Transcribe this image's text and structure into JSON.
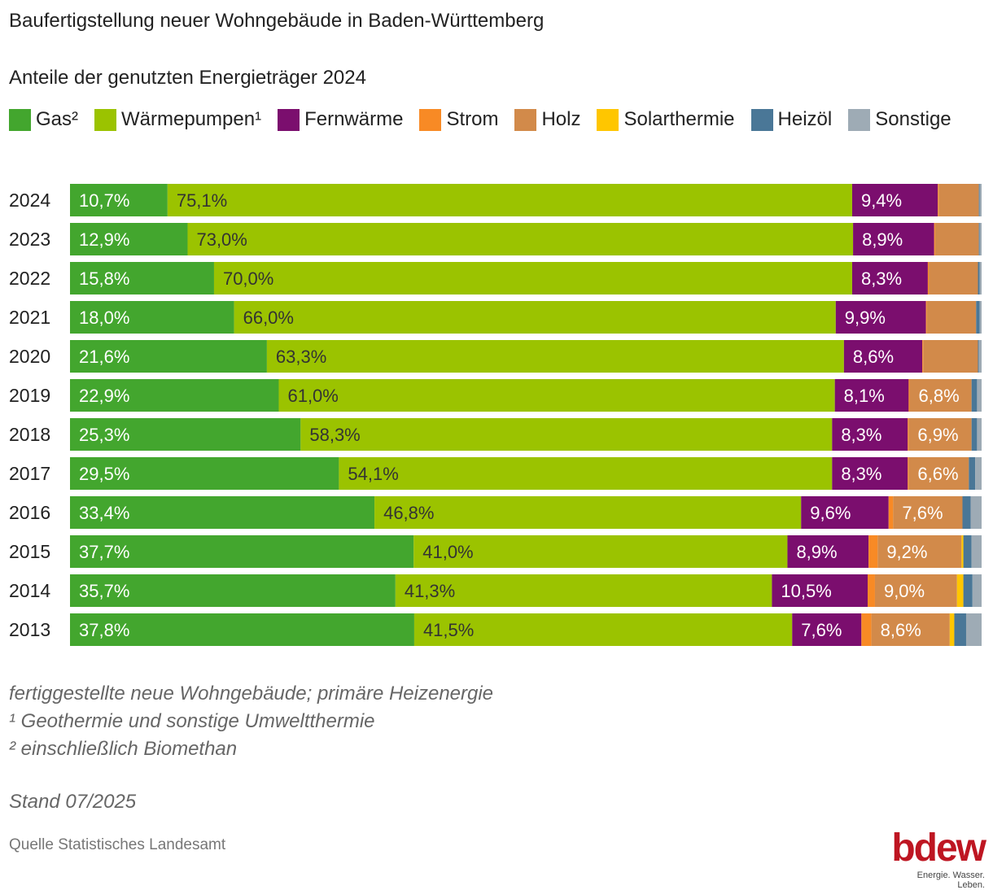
{
  "header": {
    "title": "Baufertigstellung neuer Wohngebäude in Baden-Württemberg",
    "subtitle": "Anteile der genutzten Energieträger 2024"
  },
  "footer": {
    "note_1": "fertiggestellte neue Wohngebäude; primäre Heizenergie",
    "note_2": "¹ Geothermie und sonstige Umweltthermie",
    "note_3": "² einschließlich Biomethan",
    "stand": "Stand 07/2025",
    "source": "Quelle Statistisches Landesamt"
  },
  "logo": {
    "word": "bdew",
    "tagline": "Energie. Wasser. Leben."
  },
  "chart_data": {
    "type": "bar",
    "orientation": "horizontal",
    "stacked": true,
    "normalized_percent": true,
    "categories": [
      "2024",
      "2023",
      "2022",
      "2021",
      "2020",
      "2019",
      "2018",
      "2017",
      "2016",
      "2015",
      "2014",
      "2013"
    ],
    "series": [
      {
        "name": "Gas²",
        "color": "#43a62e",
        "label_color": "#ffffff",
        "values": [
          10.7,
          12.9,
          15.8,
          18.0,
          21.6,
          22.9,
          25.3,
          29.5,
          33.4,
          37.7,
          35.7,
          37.8
        ],
        "labels": [
          "10,7%",
          "12,9%",
          "15,8%",
          "18,0%",
          "21,6%",
          "22,9%",
          "25,3%",
          "29,5%",
          "33,4%",
          "37,7%",
          "35,7%",
          "37,8%"
        ]
      },
      {
        "name": "Wärmepumpen¹",
        "color": "#9bc300",
        "label_color": "#333333",
        "values": [
          75.1,
          73.0,
          70.0,
          66.0,
          63.3,
          61.0,
          58.3,
          54.1,
          46.8,
          41.0,
          41.3,
          41.5
        ],
        "labels": [
          "75,1%",
          "73,0%",
          "70,0%",
          "66,0%",
          "63,3%",
          "61,0%",
          "58,3%",
          "54,1%",
          "46,8%",
          "41,0%",
          "41,3%",
          "41,5%"
        ]
      },
      {
        "name": "Fernwärme",
        "color": "#7b0e6e",
        "label_color": "#ffffff",
        "values": [
          9.4,
          8.9,
          8.3,
          9.9,
          8.6,
          8.1,
          8.3,
          8.3,
          9.6,
          8.9,
          10.5,
          7.6
        ],
        "labels": [
          "9,4%",
          "8,9%",
          "8,3%",
          "9,9%",
          "8,6%",
          "8,1%",
          "8,3%",
          "8,3%",
          "9,6%",
          "8,9%",
          "10,5%",
          "7,6%"
        ]
      },
      {
        "name": "Strom",
        "color": "#f88a25",
        "label_color": "#ffffff",
        "values": [
          0.1,
          0.1,
          0.1,
          0.1,
          0.1,
          0.1,
          0.1,
          0.1,
          0.5,
          1.0,
          0.8,
          1.1
        ],
        "labels": [
          "",
          "",
          "",
          "",
          "",
          "",
          "",
          "",
          "",
          "",
          "",
          ""
        ]
      },
      {
        "name": "Holz",
        "color": "#d28a4a",
        "label_color": "#ffffff",
        "values": [
          4.4,
          4.8,
          5.4,
          5.4,
          6.0,
          6.8,
          6.9,
          6.6,
          7.6,
          9.2,
          9.0,
          8.6
        ],
        "labels": [
          "",
          "",
          "",
          "",
          "",
          "6,8%",
          "6,9%",
          "6,6%",
          "7,6%",
          "9,2%",
          "9,0%",
          "8,6%"
        ]
      },
      {
        "name": "Solarthermie",
        "color": "#ffc600",
        "label_color": "#333333",
        "values": [
          0.0,
          0.0,
          0.0,
          0.0,
          0.0,
          0.0,
          0.0,
          0.0,
          0.0,
          0.2,
          0.7,
          0.5
        ],
        "labels": [
          "",
          "",
          "",
          "",
          "",
          "",
          "",
          "",
          "",
          "",
          "",
          ""
        ]
      },
      {
        "name": "Heizöl",
        "color": "#4a7797",
        "label_color": "#ffffff",
        "values": [
          0.1,
          0.1,
          0.2,
          0.4,
          0.1,
          0.6,
          0.6,
          0.7,
          0.9,
          0.9,
          1.0,
          1.3
        ],
        "labels": [
          "",
          "",
          "",
          "",
          "",
          "",
          "",
          "",
          "",
          "",
          "",
          ""
        ]
      },
      {
        "name": "Sonstige",
        "color": "#9eabb5",
        "label_color": "#333333",
        "values": [
          0.2,
          0.2,
          0.2,
          0.2,
          0.3,
          0.5,
          0.5,
          0.7,
          1.2,
          1.1,
          1.0,
          1.7
        ],
        "labels": [
          "",
          "",
          "",
          "",
          "",
          "",
          "",
          "",
          "",
          "",
          "",
          ""
        ]
      }
    ],
    "xlim": [
      0,
      100
    ],
    "grid": false,
    "legend_position": "top"
  }
}
